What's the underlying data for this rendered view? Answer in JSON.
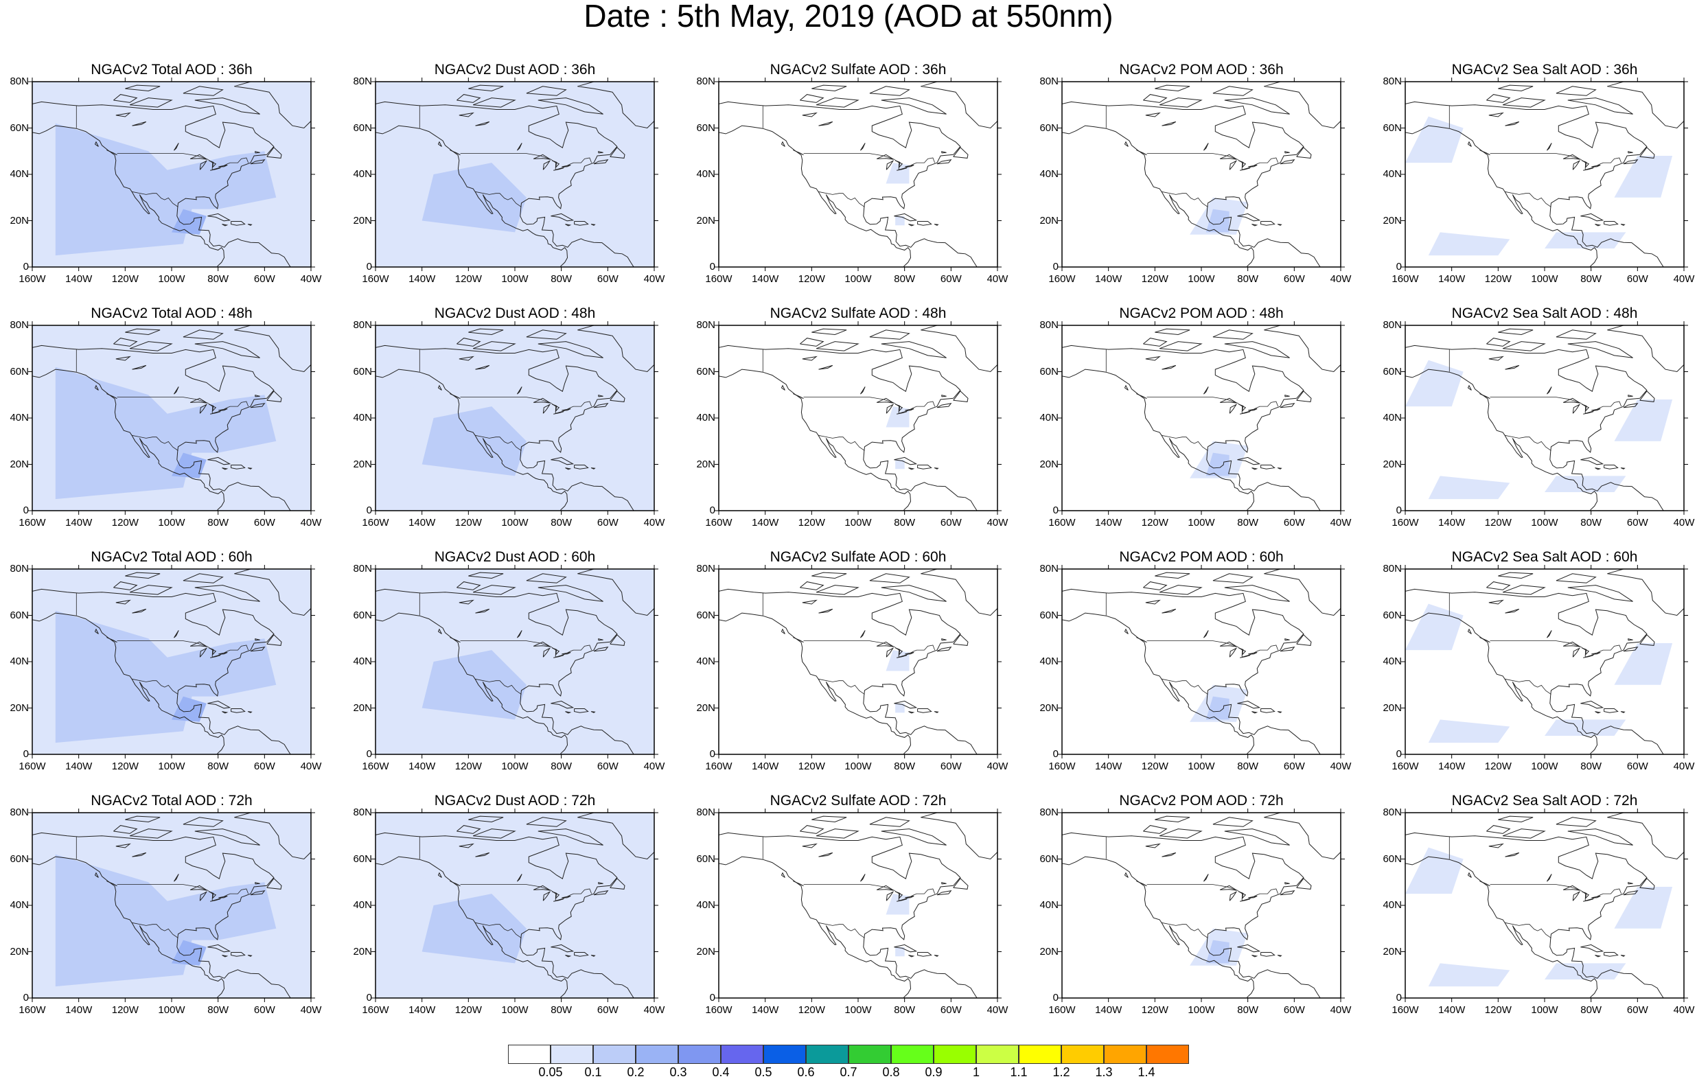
{
  "title": "Date : 5th May, 2019 (AOD at 550nm)",
  "grid": {
    "rows": [
      "36h",
      "48h",
      "60h",
      "72h"
    ],
    "columns": [
      {
        "key": "total",
        "titles": [
          "NGACv2 Total AOD : 36h",
          "NGACv2 Total AOD : 48h",
          "NGACv2 Total AOD : 60h",
          "NGACv2 Total AOD : 72h"
        ]
      },
      {
        "key": "dust",
        "titles": [
          "NGACv2 Dust AOD : 36h",
          "NGACv2 Dust AOD : 48h",
          "NGACv2 Dust AOD : 60h",
          "NGACv2 Dust AOD : 72h"
        ]
      },
      {
        "key": "sulfate",
        "titles": [
          "NGACv2 Sulfate AOD : 36h",
          "NGACv2 Sulfate AOD : 48h",
          "NGACv2 Sulfate AOD : 60h",
          "NGACv2 Sulfate AOD : 72h"
        ]
      },
      {
        "key": "pom",
        "titles": [
          "NGACv2 POM AOD : 36h",
          "NGACv2 POM AOD : 48h",
          "NGACv2 POM AOD : 60h",
          "NGACv2 POM AOD : 72h"
        ]
      },
      {
        "key": "seasalt",
        "titles": [
          "NGACv2 Sea Salt AOD : 36h",
          "NGACv2 Sea Salt AOD : 48h",
          "NGACv2 Sea Salt AOD : 60h",
          "NGACv2 Sea Salt  AOD : 72h"
        ]
      }
    ]
  },
  "axes": {
    "lat_labels": [
      "80N",
      "60N",
      "40N",
      "20N",
      "0"
    ],
    "lon_labels": [
      "160W",
      "140W",
      "120W",
      "100W",
      "80W",
      "60W",
      "40W"
    ],
    "lat_range": [
      0,
      80
    ],
    "lon_range": [
      -160,
      -40
    ]
  },
  "colorbar": {
    "labels": [
      "0.05",
      "0.1",
      "0.2",
      "0.3",
      "0.4",
      "0.5",
      "0.6",
      "0.7",
      "0.8",
      "0.9",
      "1",
      "1.1",
      "1.2",
      "1.3",
      "1.4"
    ],
    "colors": [
      "#ffffff",
      "#dce5fb",
      "#bccdf8",
      "#9ab3f5",
      "#7f97f1",
      "#6666ee",
      "#0a5fe6",
      "#0b9a9a",
      "#33cc33",
      "#66ff1a",
      "#99ff00",
      "#ccff44",
      "#ffff00",
      "#ffcc00",
      "#ffa500",
      "#ff7700",
      "#ff2a00"
    ]
  },
  "map_style": {
    "land_outline": "#222222",
    "background": "#ffffff"
  }
}
